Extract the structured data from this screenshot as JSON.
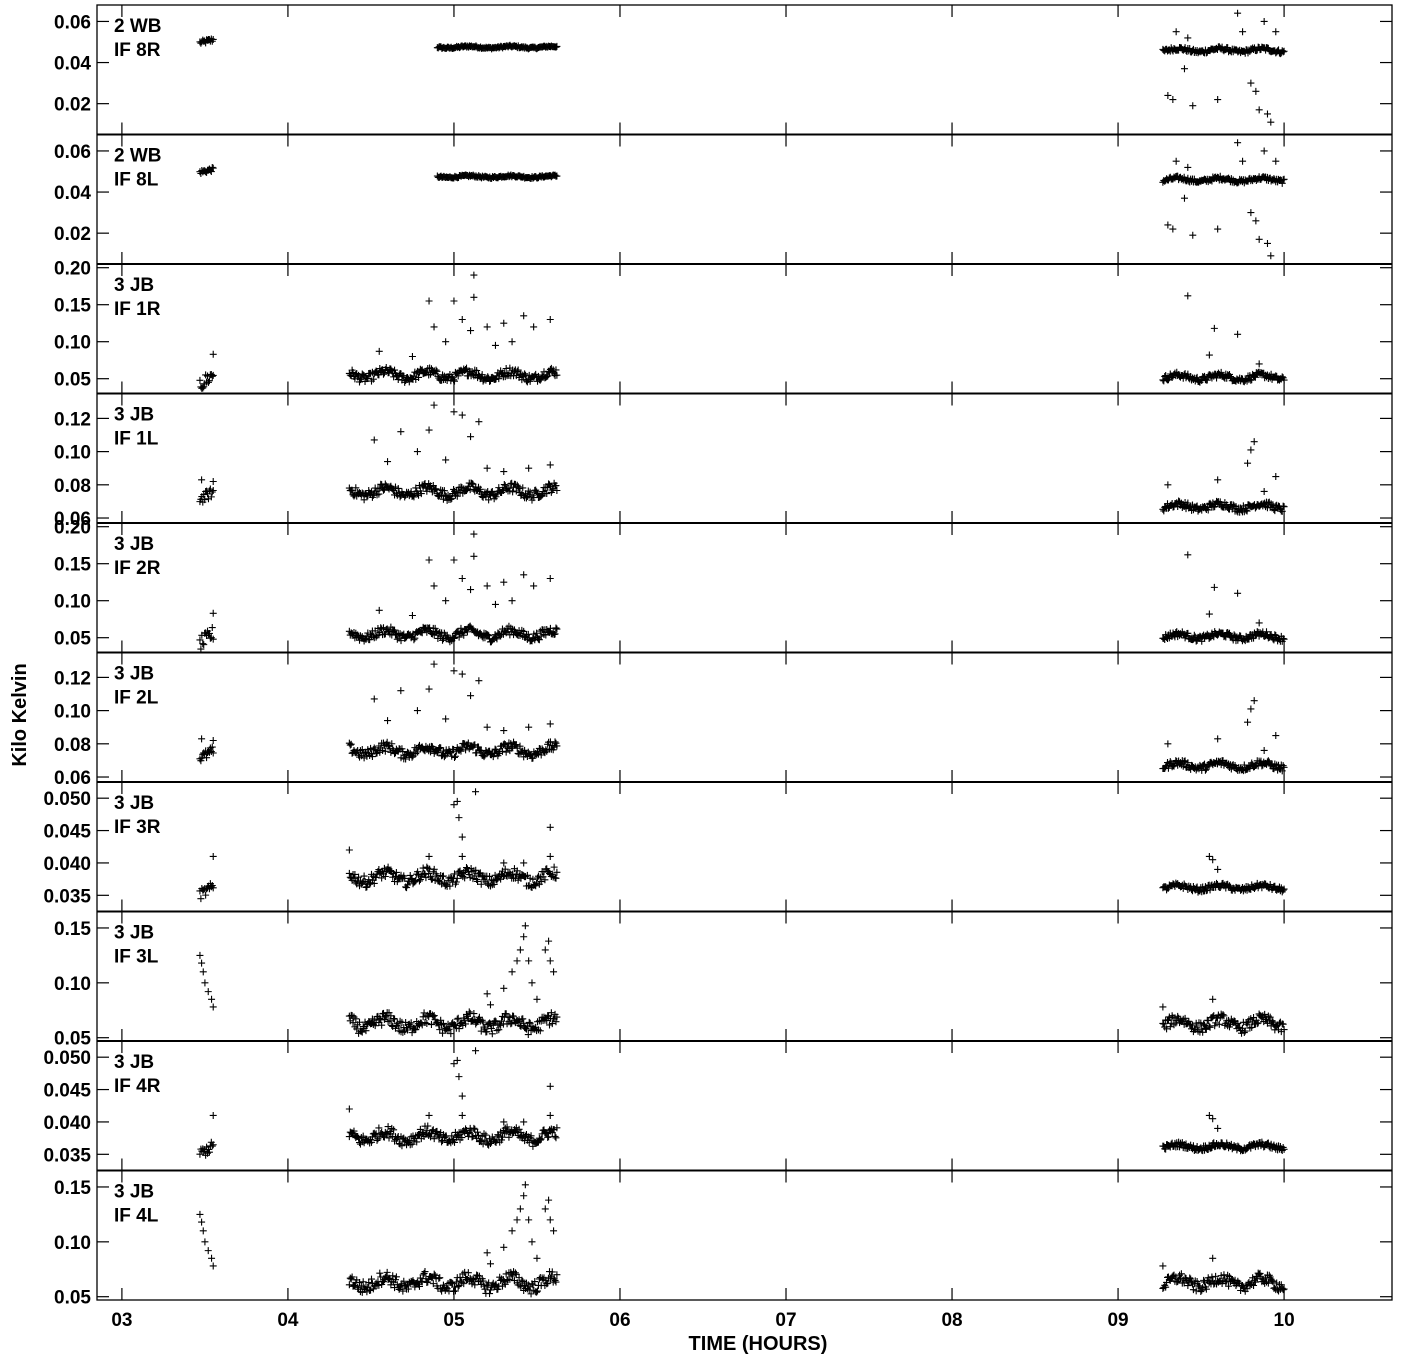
{
  "chart_data": {
    "type": "scatter",
    "xlabel": "TIME (HOURS)",
    "ylabel": "Kilo Kelvin",
    "xlim": [
      2.85,
      10.65
    ],
    "x_ticks": [
      "03",
      "04",
      "05",
      "06",
      "07",
      "08",
      "09",
      "10"
    ],
    "x_tick_values": [
      3,
      4,
      5,
      6,
      7,
      8,
      9,
      10
    ],
    "grid": false,
    "marker": "+",
    "panels": [
      {
        "antenna": "2 WB",
        "if": "IF 8R",
        "ylim": [
          0.005,
          0.068
        ],
        "y_ticks": [
          "0.02",
          "0.04",
          "0.06"
        ],
        "y_tick_values": [
          0.02,
          0.04,
          0.06
        ],
        "base": 0.046,
        "segments": [
          [
            3.47,
            3.55,
            0.0505,
            0.001
          ],
          [
            4.9,
            5.62,
            0.0475,
            0.0005
          ],
          [
            9.27,
            10.0,
            0.046,
            0.001
          ]
        ],
        "outliers": [
          [
            9.3,
            0.024
          ],
          [
            9.33,
            0.022
          ],
          [
            9.4,
            0.037
          ],
          [
            9.45,
            0.019
          ],
          [
            9.6,
            0.022
          ],
          [
            9.72,
            0.064
          ],
          [
            9.8,
            0.03
          ],
          [
            9.83,
            0.026
          ],
          [
            9.85,
            0.017
          ],
          [
            9.9,
            0.015
          ],
          [
            9.92,
            0.011
          ],
          [
            9.88,
            0.06
          ],
          [
            9.95,
            0.055
          ],
          [
            9.35,
            0.055
          ],
          [
            9.42,
            0.052
          ],
          [
            9.75,
            0.055
          ]
        ]
      },
      {
        "antenna": "2 WB",
        "if": "IF 8L",
        "ylim": [
          0.005,
          0.068
        ],
        "y_ticks": [
          "0.02",
          "0.04",
          "0.06"
        ],
        "y_tick_values": [
          0.02,
          0.04,
          0.06
        ],
        "base": 0.046,
        "segments": [
          [
            3.47,
            3.55,
            0.0505,
            0.001
          ],
          [
            4.9,
            5.62,
            0.0475,
            0.0005
          ],
          [
            9.27,
            10.0,
            0.046,
            0.001
          ]
        ],
        "outliers": [
          [
            9.3,
            0.024
          ],
          [
            9.33,
            0.022
          ],
          [
            9.4,
            0.037
          ],
          [
            9.45,
            0.019
          ],
          [
            9.6,
            0.022
          ],
          [
            9.72,
            0.064
          ],
          [
            9.8,
            0.03
          ],
          [
            9.83,
            0.026
          ],
          [
            9.85,
            0.017
          ],
          [
            9.9,
            0.015
          ],
          [
            9.92,
            0.009
          ],
          [
            9.88,
            0.06
          ],
          [
            9.95,
            0.055
          ],
          [
            9.35,
            0.055
          ],
          [
            9.42,
            0.052
          ],
          [
            9.75,
            0.055
          ]
        ]
      },
      {
        "antenna": "3 JB",
        "if": "IF 1R",
        "ylim": [
          0.03,
          0.205
        ],
        "y_ticks": [
          "0.05",
          "0.10",
          "0.15",
          "0.20"
        ],
        "y_tick_values": [
          0.05,
          0.1,
          0.15,
          0.2
        ],
        "segments": [
          [
            3.47,
            3.55,
            0.05,
            0.01
          ],
          [
            4.37,
            5.62,
            0.055,
            0.006
          ],
          [
            9.27,
            10.0,
            0.052,
            0.004
          ]
        ],
        "outliers": [
          [
            3.55,
            0.083
          ],
          [
            4.85,
            0.155
          ],
          [
            4.88,
            0.12
          ],
          [
            5.0,
            0.155
          ],
          [
            5.05,
            0.13
          ],
          [
            5.12,
            0.19
          ],
          [
            5.12,
            0.16
          ],
          [
            5.2,
            0.12
          ],
          [
            5.3,
            0.125
          ],
          [
            5.42,
            0.135
          ],
          [
            5.48,
            0.12
          ],
          [
            5.58,
            0.13
          ],
          [
            4.55,
            0.087
          ],
          [
            4.75,
            0.08
          ],
          [
            4.95,
            0.1
          ],
          [
            5.1,
            0.115
          ],
          [
            5.25,
            0.095
          ],
          [
            5.35,
            0.1
          ],
          [
            9.42,
            0.162
          ],
          [
            9.58,
            0.118
          ],
          [
            9.72,
            0.11
          ],
          [
            9.55,
            0.082
          ],
          [
            9.85,
            0.07
          ]
        ]
      },
      {
        "antenna": "3 JB",
        "if": "IF 1L",
        "ylim": [
          0.057,
          0.135
        ],
        "y_ticks": [
          "0.06",
          "0.08",
          "0.10",
          "0.12"
        ],
        "y_tick_values": [
          0.06,
          0.08,
          0.1,
          0.12
        ],
        "segments": [
          [
            3.47,
            3.55,
            0.074,
            0.003
          ],
          [
            4.37,
            5.62,
            0.076,
            0.003
          ],
          [
            9.27,
            10.0,
            0.067,
            0.002
          ]
        ],
        "outliers": [
          [
            3.48,
            0.083
          ],
          [
            3.55,
            0.082
          ],
          [
            4.52,
            0.107
          ],
          [
            4.68,
            0.112
          ],
          [
            4.85,
            0.113
          ],
          [
            4.88,
            0.128
          ],
          [
            5.0,
            0.124
          ],
          [
            5.05,
            0.122
          ],
          [
            5.1,
            0.109
          ],
          [
            5.15,
            0.118
          ],
          [
            4.78,
            0.1
          ],
          [
            4.95,
            0.095
          ],
          [
            5.2,
            0.09
          ],
          [
            5.45,
            0.09
          ],
          [
            5.58,
            0.092
          ],
          [
            4.6,
            0.094
          ],
          [
            5.3,
            0.088
          ],
          [
            9.82,
            0.106
          ],
          [
            9.8,
            0.101
          ],
          [
            9.78,
            0.093
          ],
          [
            9.6,
            0.083
          ],
          [
            9.95,
            0.085
          ],
          [
            9.3,
            0.08
          ],
          [
            9.88,
            0.076
          ]
        ]
      },
      {
        "antenna": "3 JB",
        "if": "IF 2R",
        "ylim": [
          0.03,
          0.205
        ],
        "y_ticks": [
          "0.05",
          "0.10",
          "0.15",
          "0.20"
        ],
        "y_tick_values": [
          0.05,
          0.1,
          0.15,
          0.2
        ],
        "segments": [
          [
            3.47,
            3.55,
            0.05,
            0.01
          ],
          [
            4.37,
            5.62,
            0.055,
            0.006
          ],
          [
            9.27,
            10.0,
            0.052,
            0.004
          ]
        ],
        "outliers": [
          [
            3.55,
            0.083
          ],
          [
            4.85,
            0.155
          ],
          [
            4.88,
            0.12
          ],
          [
            5.0,
            0.155
          ],
          [
            5.05,
            0.13
          ],
          [
            5.12,
            0.19
          ],
          [
            5.12,
            0.16
          ],
          [
            5.2,
            0.12
          ],
          [
            5.3,
            0.125
          ],
          [
            5.42,
            0.135
          ],
          [
            5.48,
            0.12
          ],
          [
            5.58,
            0.13
          ],
          [
            4.55,
            0.087
          ],
          [
            4.75,
            0.08
          ],
          [
            4.95,
            0.1
          ],
          [
            5.1,
            0.115
          ],
          [
            5.25,
            0.095
          ],
          [
            5.35,
            0.1
          ],
          [
            9.42,
            0.162
          ],
          [
            9.58,
            0.118
          ],
          [
            9.72,
            0.11
          ],
          [
            9.55,
            0.082
          ],
          [
            9.85,
            0.07
          ]
        ]
      },
      {
        "antenna": "3 JB",
        "if": "IF 2L",
        "ylim": [
          0.057,
          0.135
        ],
        "y_ticks": [
          "0.06",
          "0.08",
          "0.10",
          "0.12"
        ],
        "y_tick_values": [
          0.06,
          0.08,
          0.1,
          0.12
        ],
        "segments": [
          [
            3.47,
            3.55,
            0.074,
            0.003
          ],
          [
            4.37,
            5.62,
            0.076,
            0.003
          ],
          [
            9.27,
            10.0,
            0.067,
            0.002
          ]
        ],
        "outliers": [
          [
            3.48,
            0.083
          ],
          [
            3.55,
            0.082
          ],
          [
            4.52,
            0.107
          ],
          [
            4.68,
            0.112
          ],
          [
            4.85,
            0.113
          ],
          [
            4.88,
            0.128
          ],
          [
            5.0,
            0.124
          ],
          [
            5.05,
            0.122
          ],
          [
            5.1,
            0.109
          ],
          [
            5.15,
            0.118
          ],
          [
            4.78,
            0.1
          ],
          [
            4.95,
            0.095
          ],
          [
            5.2,
            0.09
          ],
          [
            5.45,
            0.09
          ],
          [
            5.58,
            0.092
          ],
          [
            4.6,
            0.094
          ],
          [
            5.3,
            0.088
          ],
          [
            9.82,
            0.106
          ],
          [
            9.8,
            0.101
          ],
          [
            9.78,
            0.093
          ],
          [
            9.6,
            0.083
          ],
          [
            9.95,
            0.085
          ],
          [
            9.3,
            0.08
          ],
          [
            9.88,
            0.076
          ]
        ]
      },
      {
        "antenna": "3 JB",
        "if": "IF 3R",
        "ylim": [
          0.0325,
          0.0525
        ],
        "y_ticks": [
          "0.035",
          "0.040",
          "0.045",
          "0.050"
        ],
        "y_tick_values": [
          0.035,
          0.04,
          0.045,
          0.05
        ],
        "segments": [
          [
            3.47,
            3.55,
            0.0358,
            0.0008
          ],
          [
            4.37,
            5.62,
            0.0378,
            0.0009
          ],
          [
            9.27,
            10.0,
            0.0362,
            0.0004
          ]
        ],
        "outliers": [
          [
            3.55,
            0.041
          ],
          [
            4.37,
            0.042
          ],
          [
            4.85,
            0.041
          ],
          [
            5.0,
            0.049
          ],
          [
            5.02,
            0.0495
          ],
          [
            5.03,
            0.047
          ],
          [
            5.05,
            0.044
          ],
          [
            5.13,
            0.051
          ],
          [
            5.05,
            0.041
          ],
          [
            5.3,
            0.04
          ],
          [
            5.42,
            0.04
          ],
          [
            5.58,
            0.0455
          ],
          [
            5.58,
            0.041
          ],
          [
            9.55,
            0.041
          ],
          [
            9.57,
            0.0405
          ],
          [
            9.6,
            0.039
          ]
        ]
      },
      {
        "antenna": "3 JB",
        "if": "IF 3L",
        "ylim": [
          0.047,
          0.165
        ],
        "y_ticks": [
          "0.05",
          "0.10",
          "0.15"
        ],
        "y_tick_values": [
          0.05,
          0.1,
          0.15
        ],
        "segments": [
          [
            4.37,
            5.62,
            0.063,
            0.006
          ],
          [
            9.27,
            10.0,
            0.063,
            0.005
          ]
        ],
        "outliers": [
          [
            3.47,
            0.125
          ],
          [
            3.48,
            0.118
          ],
          [
            3.49,
            0.11
          ],
          [
            3.5,
            0.1
          ],
          [
            3.52,
            0.092
          ],
          [
            3.54,
            0.085
          ],
          [
            3.55,
            0.078
          ],
          [
            5.2,
            0.09
          ],
          [
            5.22,
            0.08
          ],
          [
            5.3,
            0.095
          ],
          [
            5.35,
            0.11
          ],
          [
            5.38,
            0.12
          ],
          [
            5.4,
            0.13
          ],
          [
            5.42,
            0.142
          ],
          [
            5.43,
            0.152
          ],
          [
            5.45,
            0.12
          ],
          [
            5.47,
            0.1
          ],
          [
            5.5,
            0.085
          ],
          [
            5.55,
            0.13
          ],
          [
            5.57,
            0.138
          ],
          [
            5.58,
            0.12
          ],
          [
            5.6,
            0.11
          ],
          [
            9.57,
            0.085
          ],
          [
            9.27,
            0.078
          ]
        ]
      },
      {
        "antenna": "3 JB",
        "if": "IF 4R",
        "ylim": [
          0.0325,
          0.0525
        ],
        "y_ticks": [
          "0.035",
          "0.040",
          "0.045",
          "0.050"
        ],
        "y_tick_values": [
          0.035,
          0.04,
          0.045,
          0.05
        ],
        "segments": [
          [
            3.47,
            3.55,
            0.0358,
            0.0008
          ],
          [
            4.37,
            5.62,
            0.0378,
            0.0009
          ],
          [
            9.27,
            10.0,
            0.0362,
            0.0004
          ]
        ],
        "outliers": [
          [
            3.55,
            0.041
          ],
          [
            4.37,
            0.042
          ],
          [
            4.85,
            0.041
          ],
          [
            5.0,
            0.049
          ],
          [
            5.02,
            0.0495
          ],
          [
            5.03,
            0.047
          ],
          [
            5.05,
            0.044
          ],
          [
            5.13,
            0.051
          ],
          [
            5.05,
            0.041
          ],
          [
            5.3,
            0.04
          ],
          [
            5.42,
            0.04
          ],
          [
            5.58,
            0.0455
          ],
          [
            5.58,
            0.041
          ],
          [
            9.55,
            0.041
          ],
          [
            9.57,
            0.0405
          ],
          [
            9.6,
            0.039
          ]
        ]
      },
      {
        "antenna": "3 JB",
        "if": "IF 4L",
        "ylim": [
          0.047,
          0.165
        ],
        "y_ticks": [
          "0.05",
          "0.10",
          "0.15"
        ],
        "y_tick_values": [
          0.05,
          0.1,
          0.15
        ],
        "segments": [
          [
            4.37,
            5.62,
            0.063,
            0.006
          ],
          [
            9.27,
            10.0,
            0.063,
            0.005
          ]
        ],
        "outliers": [
          [
            3.47,
            0.125
          ],
          [
            3.48,
            0.118
          ],
          [
            3.49,
            0.11
          ],
          [
            3.5,
            0.1
          ],
          [
            3.52,
            0.092
          ],
          [
            3.54,
            0.085
          ],
          [
            3.55,
            0.078
          ],
          [
            5.2,
            0.09
          ],
          [
            5.22,
            0.08
          ],
          [
            5.3,
            0.095
          ],
          [
            5.35,
            0.11
          ],
          [
            5.38,
            0.12
          ],
          [
            5.4,
            0.13
          ],
          [
            5.42,
            0.142
          ],
          [
            5.43,
            0.152
          ],
          [
            5.45,
            0.12
          ],
          [
            5.47,
            0.1
          ],
          [
            5.5,
            0.085
          ],
          [
            5.55,
            0.13
          ],
          [
            5.57,
            0.138
          ],
          [
            5.58,
            0.12
          ],
          [
            5.6,
            0.11
          ],
          [
            9.57,
            0.085
          ],
          [
            9.27,
            0.078
          ]
        ]
      }
    ]
  }
}
